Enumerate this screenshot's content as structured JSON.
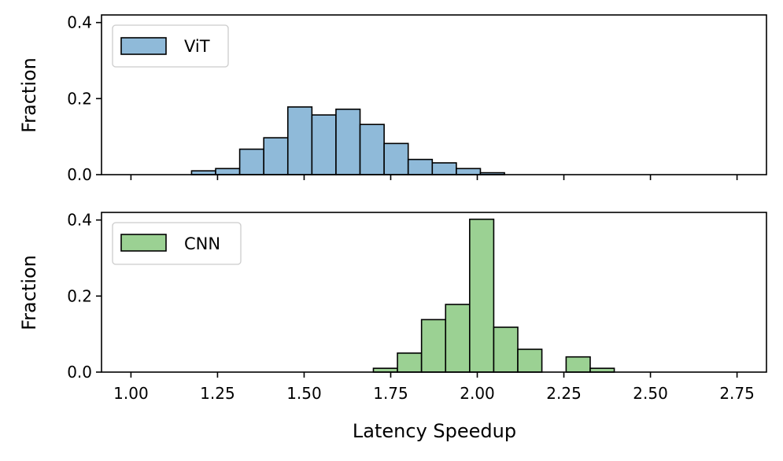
{
  "chart_data": [
    {
      "type": "bar",
      "panel": "top",
      "legend_label": "ViT",
      "legend_position": "top-left",
      "color": "#8fbad9",
      "edge_color": "#000000",
      "ylabel": "Fraction",
      "ylim": [
        0,
        0.42
      ],
      "yticks": [
        0.0,
        0.2,
        0.4
      ],
      "ytick_labels": [
        "0.0",
        "0.2",
        "0.4"
      ],
      "bin_width": 0.0695,
      "bins": [
        {
          "start": 1.175,
          "value": 0.01
        },
        {
          "start": 1.2445,
          "value": 0.016
        },
        {
          "start": 1.314,
          "value": 0.067
        },
        {
          "start": 1.3835,
          "value": 0.097
        },
        {
          "start": 1.453,
          "value": 0.178
        },
        {
          "start": 1.5225,
          "value": 0.157
        },
        {
          "start": 1.592,
          "value": 0.172
        },
        {
          "start": 1.6615,
          "value": 0.132
        },
        {
          "start": 1.731,
          "value": 0.082
        },
        {
          "start": 1.8005,
          "value": 0.04
        },
        {
          "start": 1.87,
          "value": 0.031
        },
        {
          "start": 1.9395,
          "value": 0.016
        },
        {
          "start": 2.009,
          "value": 0.005
        }
      ]
    },
    {
      "type": "bar",
      "panel": "bottom",
      "legend_label": "CNN",
      "legend_position": "top-left",
      "color": "#9bd193",
      "edge_color": "#000000",
      "ylabel": "Fraction",
      "ylim": [
        0,
        0.42
      ],
      "yticks": [
        0.0,
        0.2,
        0.4
      ],
      "ytick_labels": [
        "0.0",
        "0.2",
        "0.4"
      ],
      "bin_width": 0.0695,
      "bins": [
        {
          "start": 1.7,
          "value": 0.01
        },
        {
          "start": 1.7695,
          "value": 0.05
        },
        {
          "start": 1.839,
          "value": 0.138
        },
        {
          "start": 1.9085,
          "value": 0.178
        },
        {
          "start": 1.978,
          "value": 0.402
        },
        {
          "start": 2.0475,
          "value": 0.118
        },
        {
          "start": 2.117,
          "value": 0.06
        },
        {
          "start": 2.2565,
          "value": 0.04
        },
        {
          "start": 2.326,
          "value": 0.01
        }
      ]
    }
  ],
  "xaxis": {
    "xlabel": "Latency Speedup",
    "xlim": [
      0.915,
      2.835
    ],
    "ticks": [
      1.0,
      1.25,
      1.5,
      1.75,
      2.0,
      2.25,
      2.5,
      2.75
    ],
    "tick_labels": [
      "1.00",
      "1.25",
      "1.50",
      "1.75",
      "2.00",
      "2.25",
      "2.50",
      "2.75"
    ]
  }
}
